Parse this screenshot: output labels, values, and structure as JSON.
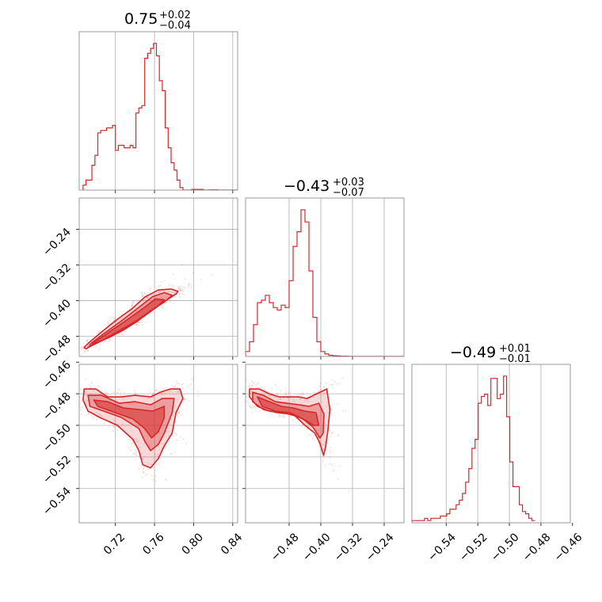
{
  "chart_data": {
    "type": "corner",
    "grid": true,
    "colors": {
      "line": "#d62728",
      "fill": "#d62728",
      "grid": "#b0b0b0",
      "frame": "#808080"
    },
    "parameters": [
      {
        "title_main": "0.75",
        "title_plus": "+0.02",
        "title_minus": "−0.04"
      },
      {
        "title_main": "−0.43",
        "title_plus": "+0.03",
        "title_minus": "−0.07"
      },
      {
        "title_main": "−0.49",
        "title_plus": "+0.01",
        "title_minus": "−0.01"
      }
    ],
    "xaxes": [
      {
        "range": [
          0.683,
          0.845
        ],
        "ticks": [
          0.72,
          0.76,
          0.8,
          0.84
        ],
        "tick_labels": [
          "0.72",
          "0.76",
          "0.80",
          "0.84"
        ]
      },
      {
        "range": [
          -0.59,
          -0.19
        ],
        "ticks": [
          -0.48,
          -0.4,
          -0.32,
          -0.24
        ],
        "tick_labels": [
          "−0.48",
          "−0.40",
          "−0.32",
          "−0.24"
        ]
      },
      {
        "range": [
          -0.5617,
          -0.4614
        ],
        "ticks": [
          -0.54,
          -0.52,
          -0.5,
          -0.48,
          -0.46
        ],
        "tick_labels": [
          "−0.54",
          "−0.52",
          "−0.50",
          "−0.48",
          "−0.46"
        ]
      }
    ],
    "yaxes": {
      "row1": {
        "range": [
          -0.525,
          -0.17
        ],
        "ticks": [
          -0.24,
          -0.32,
          -0.4,
          -0.48
        ],
        "tick_labels": [
          "−0.24",
          "−0.32",
          "−0.40",
          "−0.48"
        ]
      },
      "row2": {
        "range": [
          -0.5617,
          -0.4614
        ],
        "ticks": [
          -0.46,
          -0.48,
          -0.5,
          -0.52,
          -0.54
        ],
        "tick_labels": [
          "−0.46",
          "−0.48",
          "−0.50",
          "−0.52",
          "−0.54"
        ]
      }
    },
    "histograms": [
      {
        "param": 0,
        "x_start": 0.687,
        "bin_width": 0.003,
        "counts": [
          2,
          4,
          4,
          10,
          14,
          23,
          24,
          24,
          25,
          25,
          26,
          16,
          18,
          18,
          17,
          17,
          18,
          17,
          31,
          33,
          34,
          53,
          55,
          57,
          59,
          54,
          44,
          40,
          25,
          17,
          11,
          8,
          4,
          1,
          0,
          0,
          0,
          0.3,
          0.3,
          0.3,
          0.3,
          0,
          0,
          0.1,
          0.1,
          0.1,
          0,
          0,
          0,
          0,
          0,
          0,
          0
        ]
      },
      {
        "param": 1,
        "x_start": -0.59,
        "bin_width": 0.01,
        "counts": [
          2,
          6,
          13,
          22,
          23,
          25,
          22,
          20,
          19,
          21,
          20,
          31,
          45,
          51,
          60,
          55,
          35,
          16,
          6,
          2,
          1,
          0.5,
          0.3,
          0.2,
          0.1,
          0.1,
          0,
          0,
          0,
          0,
          0,
          0,
          0,
          0,
          0,
          0,
          0,
          0,
          0,
          0
        ]
      },
      {
        "param": 2,
        "x_start": -0.5617,
        "bin_width": 0.002,
        "counts": [
          1,
          1,
          1,
          1,
          2,
          1,
          2,
          2,
          2,
          3,
          3,
          4,
          6,
          6,
          8,
          10,
          13,
          18,
          24,
          33,
          37,
          53,
          56,
          57,
          52,
          64,
          64,
          55,
          57,
          65,
          47,
          27,
          16,
          16,
          8,
          5,
          4,
          2,
          1
        ]
      }
    ],
    "contours_2d": [
      {
        "x_param": 0,
        "y_param": 1,
        "levels": [
          {
            "points": [
              [
                0.69,
                -0.508
              ],
              [
                0.7,
                -0.495
              ],
              [
                0.714,
                -0.482
              ],
              [
                0.728,
                -0.466
              ],
              [
                0.742,
                -0.447
              ],
              [
                0.755,
                -0.425
              ],
              [
                0.768,
                -0.405
              ],
              [
                0.782,
                -0.385
              ],
              [
                0.784,
                -0.379
              ],
              [
                0.777,
                -0.374
              ],
              [
                0.764,
                -0.376
              ],
              [
                0.75,
                -0.392
              ],
              [
                0.737,
                -0.418
              ],
              [
                0.72,
                -0.445
              ],
              [
                0.706,
                -0.47
              ],
              [
                0.693,
                -0.494
              ],
              [
                0.688,
                -0.505
              ]
            ]
          },
          {
            "points": [
              [
                0.693,
                -0.504
              ],
              [
                0.706,
                -0.49
              ],
              [
                0.722,
                -0.47
              ],
              [
                0.74,
                -0.447
              ],
              [
                0.756,
                -0.423
              ],
              [
                0.77,
                -0.403
              ],
              [
                0.778,
                -0.388
              ],
              [
                0.77,
                -0.382
              ],
              [
                0.758,
                -0.391
              ],
              [
                0.744,
                -0.415
              ],
              [
                0.725,
                -0.447
              ],
              [
                0.708,
                -0.474
              ],
              [
                0.695,
                -0.496
              ]
            ]
          },
          {
            "points": [
              [
                0.696,
                -0.5
              ],
              [
                0.712,
                -0.483
              ],
              [
                0.73,
                -0.462
              ],
              [
                0.748,
                -0.437
              ],
              [
                0.762,
                -0.415
              ],
              [
                0.77,
                -0.398
              ],
              [
                0.761,
                -0.396
              ],
              [
                0.748,
                -0.418
              ],
              [
                0.73,
                -0.446
              ],
              [
                0.712,
                -0.473
              ],
              [
                0.698,
                -0.494
              ]
            ]
          }
        ]
      },
      {
        "x_param": 0,
        "y_param": 2,
        "levels": [
          {
            "points": [
              [
                0.688,
                -0.477
              ],
              [
                0.7,
                -0.477
              ],
              [
                0.712,
                -0.482
              ],
              [
                0.726,
                -0.482
              ],
              [
                0.74,
                -0.481
              ],
              [
                0.756,
                -0.482
              ],
              [
                0.766,
                -0.479
              ],
              [
                0.776,
                -0.477
              ],
              [
                0.786,
                -0.477
              ],
              [
                0.789,
                -0.483
              ],
              [
                0.782,
                -0.492
              ],
              [
                0.778,
                -0.505
              ],
              [
                0.77,
                -0.513
              ],
              [
                0.764,
                -0.521
              ],
              [
                0.756,
                -0.527
              ],
              [
                0.748,
                -0.525
              ],
              [
                0.744,
                -0.516
              ],
              [
                0.738,
                -0.509
              ],
              [
                0.722,
                -0.5
              ],
              [
                0.704,
                -0.495
              ],
              [
                0.692,
                -0.491
              ],
              [
                0.687,
                -0.484
              ]
            ]
          },
          {
            "points": [
              [
                0.692,
                -0.481
              ],
              [
                0.706,
                -0.481
              ],
              [
                0.724,
                -0.486
              ],
              [
                0.74,
                -0.485
              ],
              [
                0.756,
                -0.487
              ],
              [
                0.768,
                -0.483
              ],
              [
                0.78,
                -0.483
              ],
              [
                0.778,
                -0.492
              ],
              [
                0.77,
                -0.505
              ],
              [
                0.764,
                -0.512
              ],
              [
                0.756,
                -0.516
              ],
              [
                0.75,
                -0.51
              ],
              [
                0.744,
                -0.502
              ],
              [
                0.726,
                -0.495
              ],
              [
                0.708,
                -0.491
              ],
              [
                0.694,
                -0.488
              ]
            ]
          },
          {
            "points": [
              [
                0.698,
                -0.484
              ],
              [
                0.712,
                -0.485
              ],
              [
                0.728,
                -0.489
              ],
              [
                0.744,
                -0.49
              ],
              [
                0.758,
                -0.491
              ],
              [
                0.77,
                -0.488
              ],
              [
                0.77,
                -0.495
              ],
              [
                0.764,
                -0.504
              ],
              [
                0.757,
                -0.508
              ],
              [
                0.75,
                -0.502
              ],
              [
                0.738,
                -0.496
              ],
              [
                0.72,
                -0.492
              ],
              [
                0.702,
                -0.488
              ]
            ]
          }
        ]
      },
      {
        "x_param": 1,
        "y_param": 2,
        "levels": [
          {
            "points": [
              [
                -0.58,
                -0.477
              ],
              [
                -0.555,
                -0.477
              ],
              [
                -0.53,
                -0.48
              ],
              [
                -0.505,
                -0.482
              ],
              [
                -0.48,
                -0.482
              ],
              [
                -0.455,
                -0.482
              ],
              [
                -0.435,
                -0.483
              ],
              [
                -0.41,
                -0.48
              ],
              [
                -0.385,
                -0.477
              ],
              [
                -0.377,
                -0.49
              ],
              [
                -0.382,
                -0.503
              ],
              [
                -0.388,
                -0.514
              ],
              [
                -0.393,
                -0.519
              ],
              [
                -0.403,
                -0.511
              ],
              [
                -0.415,
                -0.505
              ],
              [
                -0.44,
                -0.5
              ],
              [
                -0.465,
                -0.494
              ],
              [
                -0.495,
                -0.492
              ],
              [
                -0.53,
                -0.491
              ],
              [
                -0.56,
                -0.488
              ],
              [
                -0.58,
                -0.482
              ]
            ]
          },
          {
            "points": [
              [
                -0.572,
                -0.479
              ],
              [
                -0.545,
                -0.481
              ],
              [
                -0.515,
                -0.485
              ],
              [
                -0.485,
                -0.486
              ],
              [
                -0.455,
                -0.487
              ],
              [
                -0.43,
                -0.488
              ],
              [
                -0.405,
                -0.486
              ],
              [
                -0.392,
                -0.493
              ],
              [
                -0.394,
                -0.505
              ],
              [
                -0.402,
                -0.508
              ],
              [
                -0.42,
                -0.501
              ],
              [
                -0.445,
                -0.496
              ],
              [
                -0.475,
                -0.493
              ],
              [
                -0.51,
                -0.492
              ],
              [
                -0.545,
                -0.49
              ],
              [
                -0.572,
                -0.485
              ]
            ]
          },
          {
            "points": [
              [
                -0.56,
                -0.482
              ],
              [
                -0.53,
                -0.485
              ],
              [
                -0.5,
                -0.488
              ],
              [
                -0.47,
                -0.489
              ],
              [
                -0.44,
                -0.491
              ],
              [
                -0.412,
                -0.492
              ],
              [
                -0.405,
                -0.5
              ],
              [
                -0.418,
                -0.5
              ],
              [
                -0.445,
                -0.496
              ],
              [
                -0.478,
                -0.492
              ],
              [
                -0.515,
                -0.491
              ],
              [
                -0.548,
                -0.488
              ]
            ]
          }
        ]
      }
    ]
  }
}
